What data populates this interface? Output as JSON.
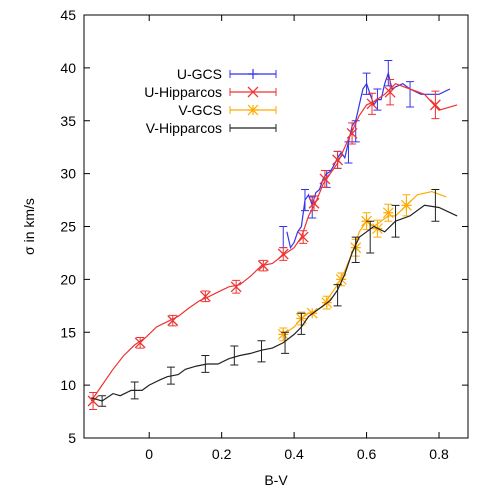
{
  "chart_data": {
    "type": "line",
    "xlabel": "B-V",
    "ylabel": "σ in km/s",
    "xlim": [
      -0.18,
      0.88
    ],
    "ylim": [
      5,
      45
    ],
    "xticks": [
      "0",
      "0.2",
      "0.4",
      "0.6",
      "0.8"
    ],
    "xtick_values": [
      0,
      0.2,
      0.4,
      0.6,
      0.8
    ],
    "yticks": [
      "5",
      "10",
      "15",
      "20",
      "25",
      "30",
      "35",
      "40",
      "45"
    ],
    "ytick_values": [
      5,
      10,
      15,
      20,
      25,
      30,
      35,
      40,
      45
    ],
    "grid": false,
    "legend_position": "top-left",
    "series": [
      {
        "name": "U-GCS",
        "color": "#3333ee",
        "marker": "plus",
        "line": [
          [
            0.38,
            24.5
          ],
          [
            0.39,
            23.0
          ],
          [
            0.4,
            23.5
          ],
          [
            0.41,
            24.5
          ],
          [
            0.42,
            25.0
          ],
          [
            0.43,
            27.5
          ],
          [
            0.44,
            28.0
          ],
          [
            0.45,
            27.0
          ],
          [
            0.46,
            28.2
          ],
          [
            0.47,
            28.5
          ],
          [
            0.48,
            29.5
          ],
          [
            0.49,
            30.0
          ],
          [
            0.5,
            30.2
          ],
          [
            0.51,
            30.8
          ],
          [
            0.52,
            31.5
          ],
          [
            0.53,
            32.0
          ],
          [
            0.54,
            31.5
          ],
          [
            0.55,
            33.0
          ],
          [
            0.56,
            34.5
          ],
          [
            0.57,
            35.0
          ],
          [
            0.58,
            36.5
          ],
          [
            0.59,
            38.0
          ],
          [
            0.6,
            38.5
          ],
          [
            0.61,
            37.5
          ],
          [
            0.62,
            36.5
          ],
          [
            0.63,
            37.0
          ],
          [
            0.64,
            37.0
          ],
          [
            0.65,
            38.5
          ],
          [
            0.66,
            39.5
          ],
          [
            0.67,
            38.0
          ],
          [
            0.68,
            38.2
          ],
          [
            0.7,
            38.5
          ],
          [
            0.72,
            38.0
          ],
          [
            0.75,
            37.5
          ],
          [
            0.8,
            37.5
          ],
          [
            0.83,
            38.0
          ]
        ],
        "errorbars": [
          [
            0.37,
            24.0,
            1.0
          ],
          [
            0.43,
            27.5,
            1.0
          ],
          [
            0.45,
            26.8,
            1.0
          ],
          [
            0.49,
            29.5,
            0.8
          ],
          [
            0.52,
            31.3,
            0.8
          ],
          [
            0.55,
            32.0,
            1.0
          ],
          [
            0.57,
            34.0,
            1.0
          ],
          [
            0.6,
            38.5,
            1.0
          ],
          [
            0.63,
            37.0,
            1.0
          ],
          [
            0.66,
            39.5,
            1.2
          ],
          [
            0.72,
            37.5,
            1.2
          ]
        ]
      },
      {
        "name": "U-Hipparcos",
        "color": "#ee3333",
        "marker": "x",
        "line": [
          [
            -0.16,
            8.5
          ],
          [
            -0.13,
            10.0
          ],
          [
            -0.1,
            11.5
          ],
          [
            -0.07,
            12.8
          ],
          [
            -0.04,
            13.8
          ],
          [
            -0.01,
            14.5
          ],
          [
            0.02,
            15.5
          ],
          [
            0.05,
            16.0
          ],
          [
            0.08,
            16.5
          ],
          [
            0.11,
            17.3
          ],
          [
            0.14,
            18.0
          ],
          [
            0.16,
            18.3
          ],
          [
            0.19,
            18.8
          ],
          [
            0.22,
            19.3
          ],
          [
            0.25,
            19.5
          ],
          [
            0.28,
            20.3
          ],
          [
            0.31,
            21.3
          ],
          [
            0.34,
            21.5
          ],
          [
            0.37,
            22.3
          ],
          [
            0.4,
            23.0
          ],
          [
            0.42,
            24.0
          ],
          [
            0.44,
            26.0
          ],
          [
            0.46,
            27.3
          ],
          [
            0.48,
            29.0
          ],
          [
            0.5,
            30.0
          ],
          [
            0.52,
            31.0
          ],
          [
            0.54,
            32.5
          ],
          [
            0.56,
            34.0
          ],
          [
            0.58,
            35.5
          ],
          [
            0.6,
            36.5
          ],
          [
            0.62,
            36.8
          ],
          [
            0.65,
            37.5
          ],
          [
            0.68,
            38.5
          ],
          [
            0.72,
            38.0
          ],
          [
            0.76,
            37.5
          ],
          [
            0.8,
            36.0
          ],
          [
            0.85,
            36.5
          ]
        ],
        "points": [
          [
            -0.155,
            8.5
          ],
          [
            -0.025,
            14.0
          ],
          [
            0.065,
            16.1
          ],
          [
            0.155,
            18.4
          ],
          [
            0.24,
            19.3
          ],
          [
            0.315,
            21.3
          ],
          [
            0.37,
            22.4
          ],
          [
            0.425,
            24.0
          ],
          [
            0.455,
            27.2
          ],
          [
            0.485,
            29.5
          ],
          [
            0.52,
            31.3
          ],
          [
            0.56,
            33.8
          ],
          [
            0.615,
            36.6
          ],
          [
            0.665,
            37.7
          ],
          [
            0.79,
            36.5
          ]
        ],
        "errorbars": [
          [
            -0.155,
            8.5,
            0.8
          ],
          [
            -0.025,
            14.0,
            0.5
          ],
          [
            0.065,
            16.1,
            0.5
          ],
          [
            0.155,
            18.4,
            0.5
          ],
          [
            0.24,
            19.3,
            0.6
          ],
          [
            0.315,
            21.3,
            0.5
          ],
          [
            0.37,
            22.4,
            0.6
          ],
          [
            0.425,
            24.0,
            0.6
          ],
          [
            0.455,
            27.2,
            0.7
          ],
          [
            0.485,
            29.5,
            0.8
          ],
          [
            0.52,
            31.3,
            0.8
          ],
          [
            0.56,
            33.8,
            1.0
          ],
          [
            0.615,
            36.6,
            1.0
          ],
          [
            0.665,
            37.7,
            1.2
          ],
          [
            0.79,
            36.5,
            1.3
          ]
        ]
      },
      {
        "name": "V-GCS",
        "color": "#ffaa00",
        "marker": "star",
        "line": [
          [
            0.37,
            14.8
          ],
          [
            0.4,
            15.5
          ],
          [
            0.42,
            16.3
          ],
          [
            0.44,
            16.8
          ],
          [
            0.46,
            17.0
          ],
          [
            0.48,
            17.5
          ],
          [
            0.5,
            18.5
          ],
          [
            0.52,
            19.5
          ],
          [
            0.54,
            20.8
          ],
          [
            0.56,
            22.5
          ],
          [
            0.58,
            24.5
          ],
          [
            0.6,
            25.5
          ],
          [
            0.62,
            25.0
          ],
          [
            0.64,
            25.5
          ],
          [
            0.66,
            26.0
          ],
          [
            0.68,
            26.0
          ],
          [
            0.71,
            27.0
          ],
          [
            0.74,
            28.0
          ],
          [
            0.78,
            28.3
          ],
          [
            0.82,
            27.8
          ]
        ],
        "points": [
          [
            0.37,
            14.8
          ],
          [
            0.42,
            16.3
          ],
          [
            0.45,
            16.8
          ],
          [
            0.49,
            17.8
          ],
          [
            0.53,
            20.0
          ],
          [
            0.57,
            23.0
          ],
          [
            0.6,
            25.5
          ],
          [
            0.63,
            24.8
          ],
          [
            0.66,
            26.3
          ],
          [
            0.71,
            27.0
          ]
        ],
        "errorbars": [
          [
            0.37,
            14.8,
            0.6
          ],
          [
            0.42,
            16.3,
            0.6
          ],
          [
            0.49,
            17.8,
            0.6
          ],
          [
            0.53,
            20.0,
            0.6
          ],
          [
            0.57,
            23.0,
            0.8
          ],
          [
            0.6,
            25.5,
            0.8
          ],
          [
            0.63,
            24.8,
            0.8
          ],
          [
            0.66,
            26.3,
            0.8
          ],
          [
            0.71,
            27.0,
            1.0
          ]
        ]
      },
      {
        "name": "V-Hipparcos",
        "color": "#222222",
        "marker": "none",
        "line": [
          [
            -0.16,
            8.8
          ],
          [
            -0.13,
            8.5
          ],
          [
            -0.1,
            9.2
          ],
          [
            -0.08,
            9.0
          ],
          [
            -0.05,
            9.5
          ],
          [
            -0.02,
            9.5
          ],
          [
            0.0,
            10.0
          ],
          [
            0.03,
            10.5
          ],
          [
            0.05,
            10.8
          ],
          [
            0.08,
            11.0
          ],
          [
            0.1,
            11.5
          ],
          [
            0.13,
            11.8
          ],
          [
            0.16,
            12.0
          ],
          [
            0.19,
            12.0
          ],
          [
            0.22,
            12.5
          ],
          [
            0.25,
            12.8
          ],
          [
            0.28,
            13.0
          ],
          [
            0.31,
            13.3
          ],
          [
            0.34,
            13.5
          ],
          [
            0.37,
            14.0
          ],
          [
            0.4,
            14.8
          ],
          [
            0.42,
            15.5
          ],
          [
            0.44,
            16.5
          ],
          [
            0.46,
            17.0
          ],
          [
            0.48,
            17.5
          ],
          [
            0.5,
            18.0
          ],
          [
            0.52,
            19.0
          ],
          [
            0.54,
            20.5
          ],
          [
            0.56,
            22.5
          ],
          [
            0.58,
            24.0
          ],
          [
            0.6,
            24.5
          ],
          [
            0.62,
            25.0
          ],
          [
            0.65,
            24.5
          ],
          [
            0.68,
            25.5
          ],
          [
            0.72,
            26.0
          ],
          [
            0.76,
            27.0
          ],
          [
            0.8,
            26.8
          ],
          [
            0.85,
            26.0
          ]
        ],
        "errorbars": [
          [
            -0.13,
            8.5,
            0.5
          ],
          [
            -0.04,
            9.5,
            0.8
          ],
          [
            0.06,
            10.9,
            0.8
          ],
          [
            0.155,
            12.0,
            0.8
          ],
          [
            0.235,
            12.8,
            0.9
          ],
          [
            0.31,
            13.2,
            1.0
          ],
          [
            0.375,
            14.0,
            1.0
          ],
          [
            0.42,
            15.8,
            1.0
          ],
          [
            0.52,
            18.5,
            1.0
          ],
          [
            0.57,
            22.8,
            1.2
          ],
          [
            0.61,
            24.0,
            1.5
          ],
          [
            0.68,
            25.5,
            1.5
          ],
          [
            0.79,
            27.0,
            1.5
          ]
        ]
      }
    ]
  }
}
